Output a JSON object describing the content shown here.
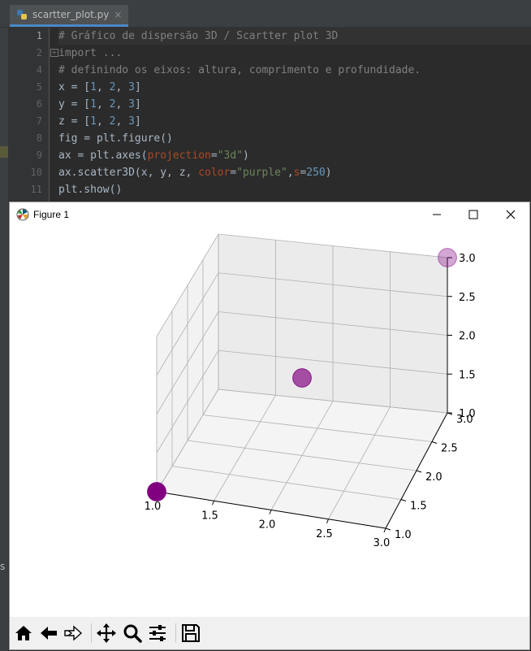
{
  "ide": {
    "tab": {
      "filename": "scartter_plot.py",
      "close": "×"
    },
    "lines": [
      {
        "n": "1",
        "text": "# Gráfico de dispersão 3D / Scartter plot 3D"
      },
      {
        "n": "2",
        "text": "import ..."
      },
      {
        "n": "4",
        "text": "# definindo os eixos: altura, comprimento e profundidade."
      },
      {
        "n": "5"
      },
      {
        "n": "6"
      },
      {
        "n": "7"
      },
      {
        "n": "8"
      },
      {
        "n": "9"
      },
      {
        "n": "10"
      },
      {
        "n": "11"
      }
    ],
    "code": {
      "x_var": "x = [",
      "y_var": "y = [",
      "z_var": "z = [",
      "one": "1",
      "two": "2",
      "three": "3",
      "sep": ", ",
      "close": "]",
      "fig_line": "fig = plt.figure()",
      "ax_start": "ax = plt.axes(",
      "projection": "projection",
      "eq": "=",
      "proj_val": "\"3d\"",
      "paren": ")",
      "scatter_start": "ax.scatter3D(x, y, z, ",
      "color_kw": "color",
      "color_val": "\"purple\"",
      "comma": ",",
      "s_kw": "s",
      "s_val": "250",
      "show": "plt.show()",
      "fold_marker": "+"
    },
    "bottom_char": "s"
  },
  "figure_window": {
    "title": "Figure 1",
    "controls": [
      "minimize",
      "maximize",
      "close"
    ]
  },
  "toolbar": {
    "buttons": [
      "home-icon",
      "back-icon",
      "forward-icon",
      "pan-icon",
      "zoom-icon",
      "configure-subplots-icon",
      "save-icon"
    ]
  },
  "chart_data": {
    "type": "scatter",
    "projection": "3d",
    "x": [
      1,
      2,
      3
    ],
    "y": [
      1,
      2,
      3
    ],
    "z": [
      1,
      2,
      3
    ],
    "color": "#800080",
    "marker_size": 250,
    "xlim": [
      1,
      3
    ],
    "ylim": [
      1,
      3
    ],
    "zlim": [
      1,
      3
    ],
    "x_ticks": [
      "1.0",
      "1.5",
      "2.0",
      "2.5",
      "3.0"
    ],
    "y_ticks": [
      "1.0",
      "1.5",
      "2.0",
      "2.5",
      "3.0"
    ],
    "z_ticks": [
      "1.0",
      "1.5",
      "2.0",
      "2.5",
      "3.0"
    ],
    "grid": true
  }
}
